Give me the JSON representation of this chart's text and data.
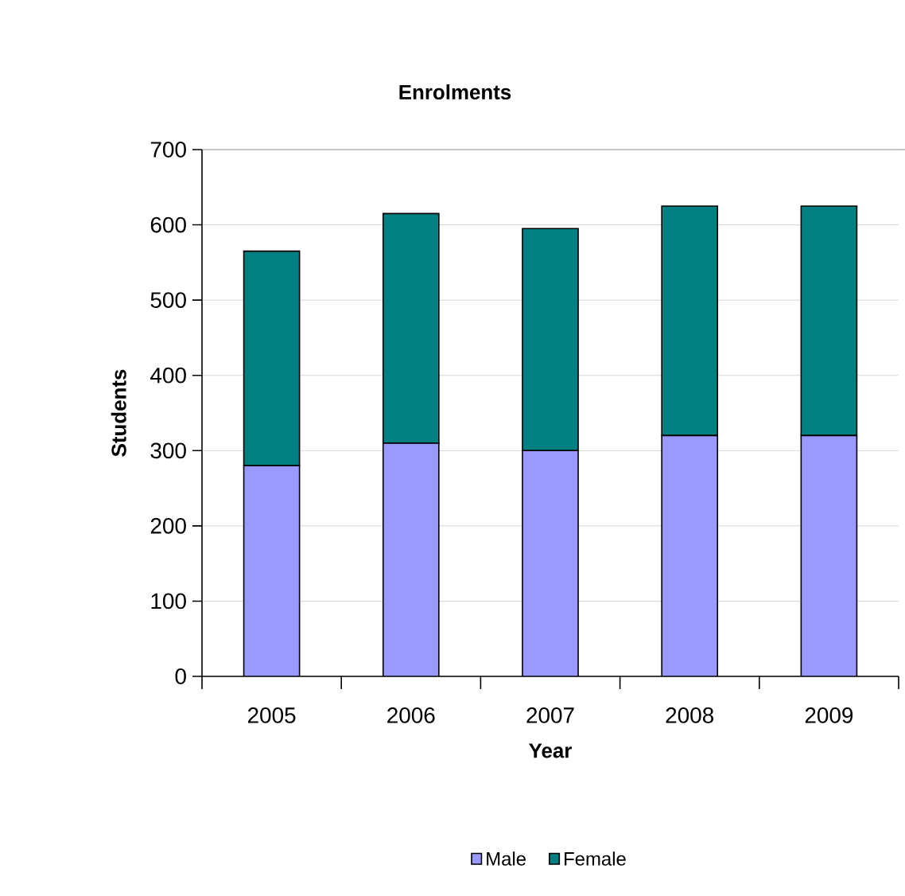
{
  "chart_data": {
    "type": "bar",
    "title": "Enrolments",
    "xlabel": "Year",
    "ylabel": "Students",
    "categories": [
      "2005",
      "2006",
      "2007",
      "2008",
      "2009"
    ],
    "series": [
      {
        "name": "Male",
        "color": "#9999ff",
        "values": [
          280,
          310,
          300,
          320,
          320
        ]
      },
      {
        "name": "Female",
        "color": "#008080",
        "values": [
          285,
          305,
          295,
          305,
          305
        ]
      }
    ],
    "stacked": true,
    "ylim": [
      0,
      700
    ],
    "yticks": [
      0,
      100,
      200,
      300,
      400,
      500,
      600,
      700
    ],
    "grid": "y",
    "legend": "bottom"
  }
}
